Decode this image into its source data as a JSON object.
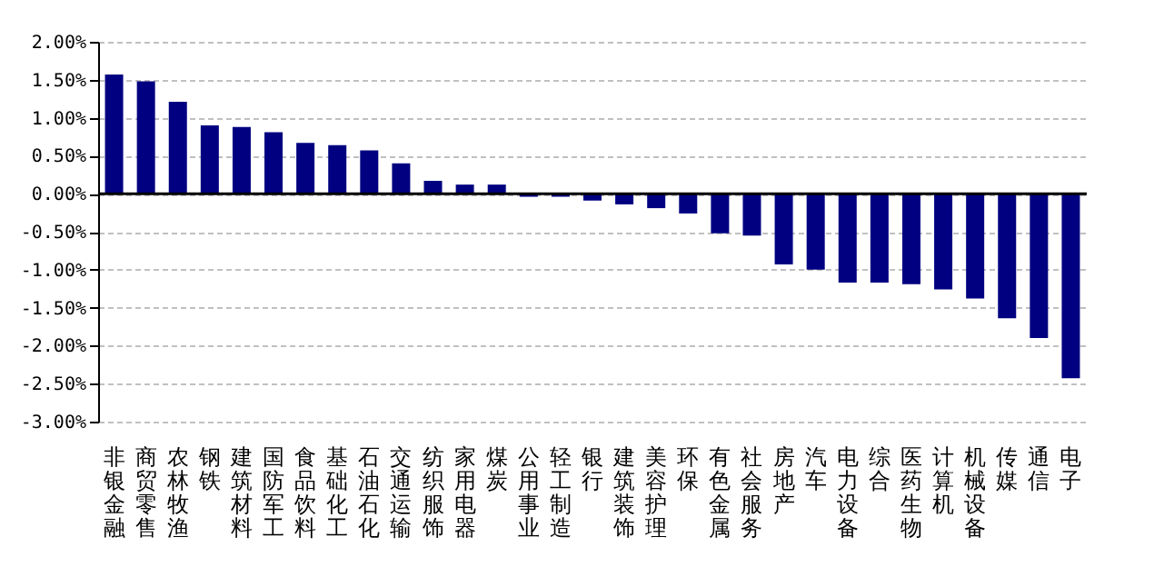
{
  "chart_data": {
    "type": "bar",
    "categories": [
      "非银金融",
      "商贸零售",
      "农林牧渔",
      "钢铁",
      "建筑材料",
      "国防军工",
      "食品饮料",
      "基础化工",
      "石油石化",
      "交通运输",
      "纺织服饰",
      "家用电器",
      "煤炭",
      "公用事业",
      "轻工制造",
      "银行",
      "建筑装饰",
      "美容护理",
      "环保",
      "有色金属",
      "社会服务",
      "房地产",
      "汽车",
      "电力设备",
      "综合",
      "医药生物",
      "计算机",
      "机械设备",
      "传媒",
      "通信",
      "电子"
    ],
    "values": [
      1.57,
      1.48,
      1.21,
      0.9,
      0.88,
      0.81,
      0.67,
      0.64,
      0.57,
      0.4,
      0.17,
      0.12,
      0.12,
      -0.04,
      -0.04,
      -0.09,
      -0.14,
      -0.19,
      -0.26,
      -0.52,
      -0.55,
      -0.93,
      -1.0,
      -1.17,
      -1.17,
      -1.19,
      -1.26,
      -1.38,
      -1.64,
      -1.9,
      -2.43
    ],
    "color": "#000080",
    "ylim": [
      -3,
      2
    ],
    "yticks": [
      {
        "value": -3,
        "label": "-3.00%"
      },
      {
        "value": -2.5,
        "label": "-2.50%"
      },
      {
        "value": -2,
        "label": "-2.00%"
      },
      {
        "value": -1.5,
        "label": "-1.50%"
      },
      {
        "value": -1,
        "label": "-1.00%"
      },
      {
        "value": -0.5,
        "label": "-0.50%"
      },
      {
        "value": 0,
        "label": "0.00%"
      },
      {
        "value": 0.5,
        "label": "0.50%"
      },
      {
        "value": 1,
        "label": "1.00%"
      },
      {
        "value": 1.5,
        "label": "1.50%"
      },
      {
        "value": 2,
        "label": "2.00%"
      }
    ],
    "grid": "y"
  }
}
